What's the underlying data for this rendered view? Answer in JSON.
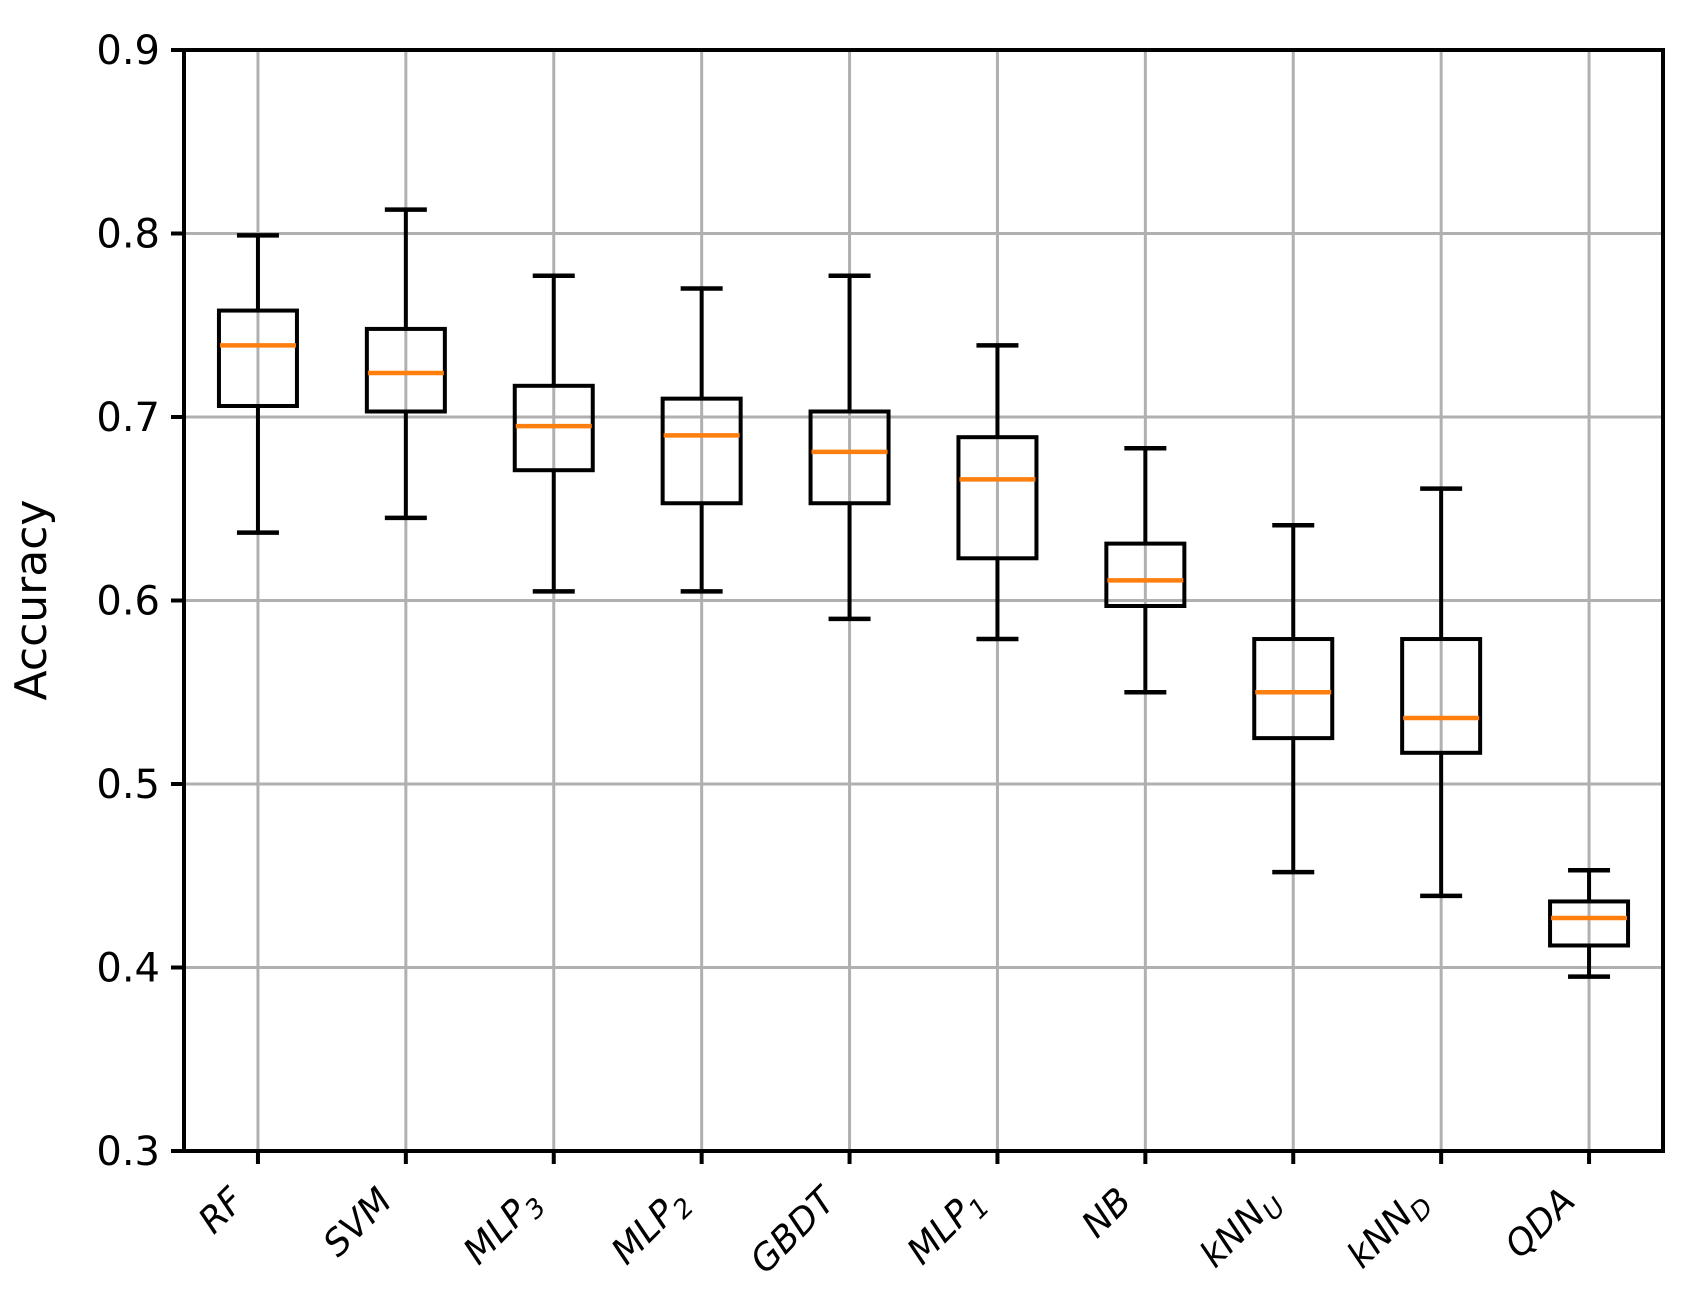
{
  "figure": {
    "background": "#ffffff"
  },
  "chart_data": {
    "type": "box",
    "title": "",
    "xlabel": "",
    "ylabel": "Accuracy",
    "ylim": [
      0.3,
      0.9
    ],
    "yticks": [
      0.3,
      0.4,
      0.5,
      0.6,
      0.7,
      0.8,
      0.9
    ],
    "grid": true,
    "legend": "none",
    "categories": [
      {
        "text": "RF",
        "sub": ""
      },
      {
        "text": "SVM",
        "sub": ""
      },
      {
        "text": "MLP",
        "sub": "3"
      },
      {
        "text": "MLP",
        "sub": "2"
      },
      {
        "text": "GBDT",
        "sub": ""
      },
      {
        "text": "MLP",
        "sub": "1"
      },
      {
        "text": "NB",
        "sub": ""
      },
      {
        "text": "kNN",
        "sub": "U"
      },
      {
        "text": "kNN",
        "sub": "D"
      },
      {
        "text": "QDA",
        "sub": ""
      }
    ],
    "series": [
      {
        "label": "RF",
        "whislo": 0.637,
        "q1": 0.706,
        "med": 0.739,
        "q3": 0.758,
        "whishi": 0.799
      },
      {
        "label": "SVM",
        "whislo": 0.645,
        "q1": 0.703,
        "med": 0.724,
        "q3": 0.748,
        "whishi": 0.813
      },
      {
        "label": "MLP3",
        "whislo": 0.605,
        "q1": 0.671,
        "med": 0.695,
        "q3": 0.717,
        "whishi": 0.777
      },
      {
        "label": "MLP2",
        "whislo": 0.605,
        "q1": 0.653,
        "med": 0.69,
        "q3": 0.71,
        "whishi": 0.77
      },
      {
        "label": "GBDT",
        "whislo": 0.59,
        "q1": 0.653,
        "med": 0.681,
        "q3": 0.703,
        "whishi": 0.777
      },
      {
        "label": "MLP1",
        "whislo": 0.579,
        "q1": 0.623,
        "med": 0.666,
        "q3": 0.689,
        "whishi": 0.739
      },
      {
        "label": "NB",
        "whislo": 0.55,
        "q1": 0.597,
        "med": 0.611,
        "q3": 0.631,
        "whishi": 0.683
      },
      {
        "label": "kNNU",
        "whislo": 0.452,
        "q1": 0.525,
        "med": 0.55,
        "q3": 0.579,
        "whishi": 0.641
      },
      {
        "label": "kNND",
        "whislo": 0.439,
        "q1": 0.517,
        "med": 0.536,
        "q3": 0.579,
        "whishi": 0.661
      },
      {
        "label": "QDA",
        "whislo": 0.395,
        "q1": 0.412,
        "med": 0.427,
        "q3": 0.436,
        "whishi": 0.453
      }
    ],
    "colors": {
      "median": "#ff7f0e",
      "box": "#000000",
      "whisker": "#000000",
      "grid": "#b0b0b0",
      "spine": "#000000",
      "background": "#ffffff"
    }
  }
}
